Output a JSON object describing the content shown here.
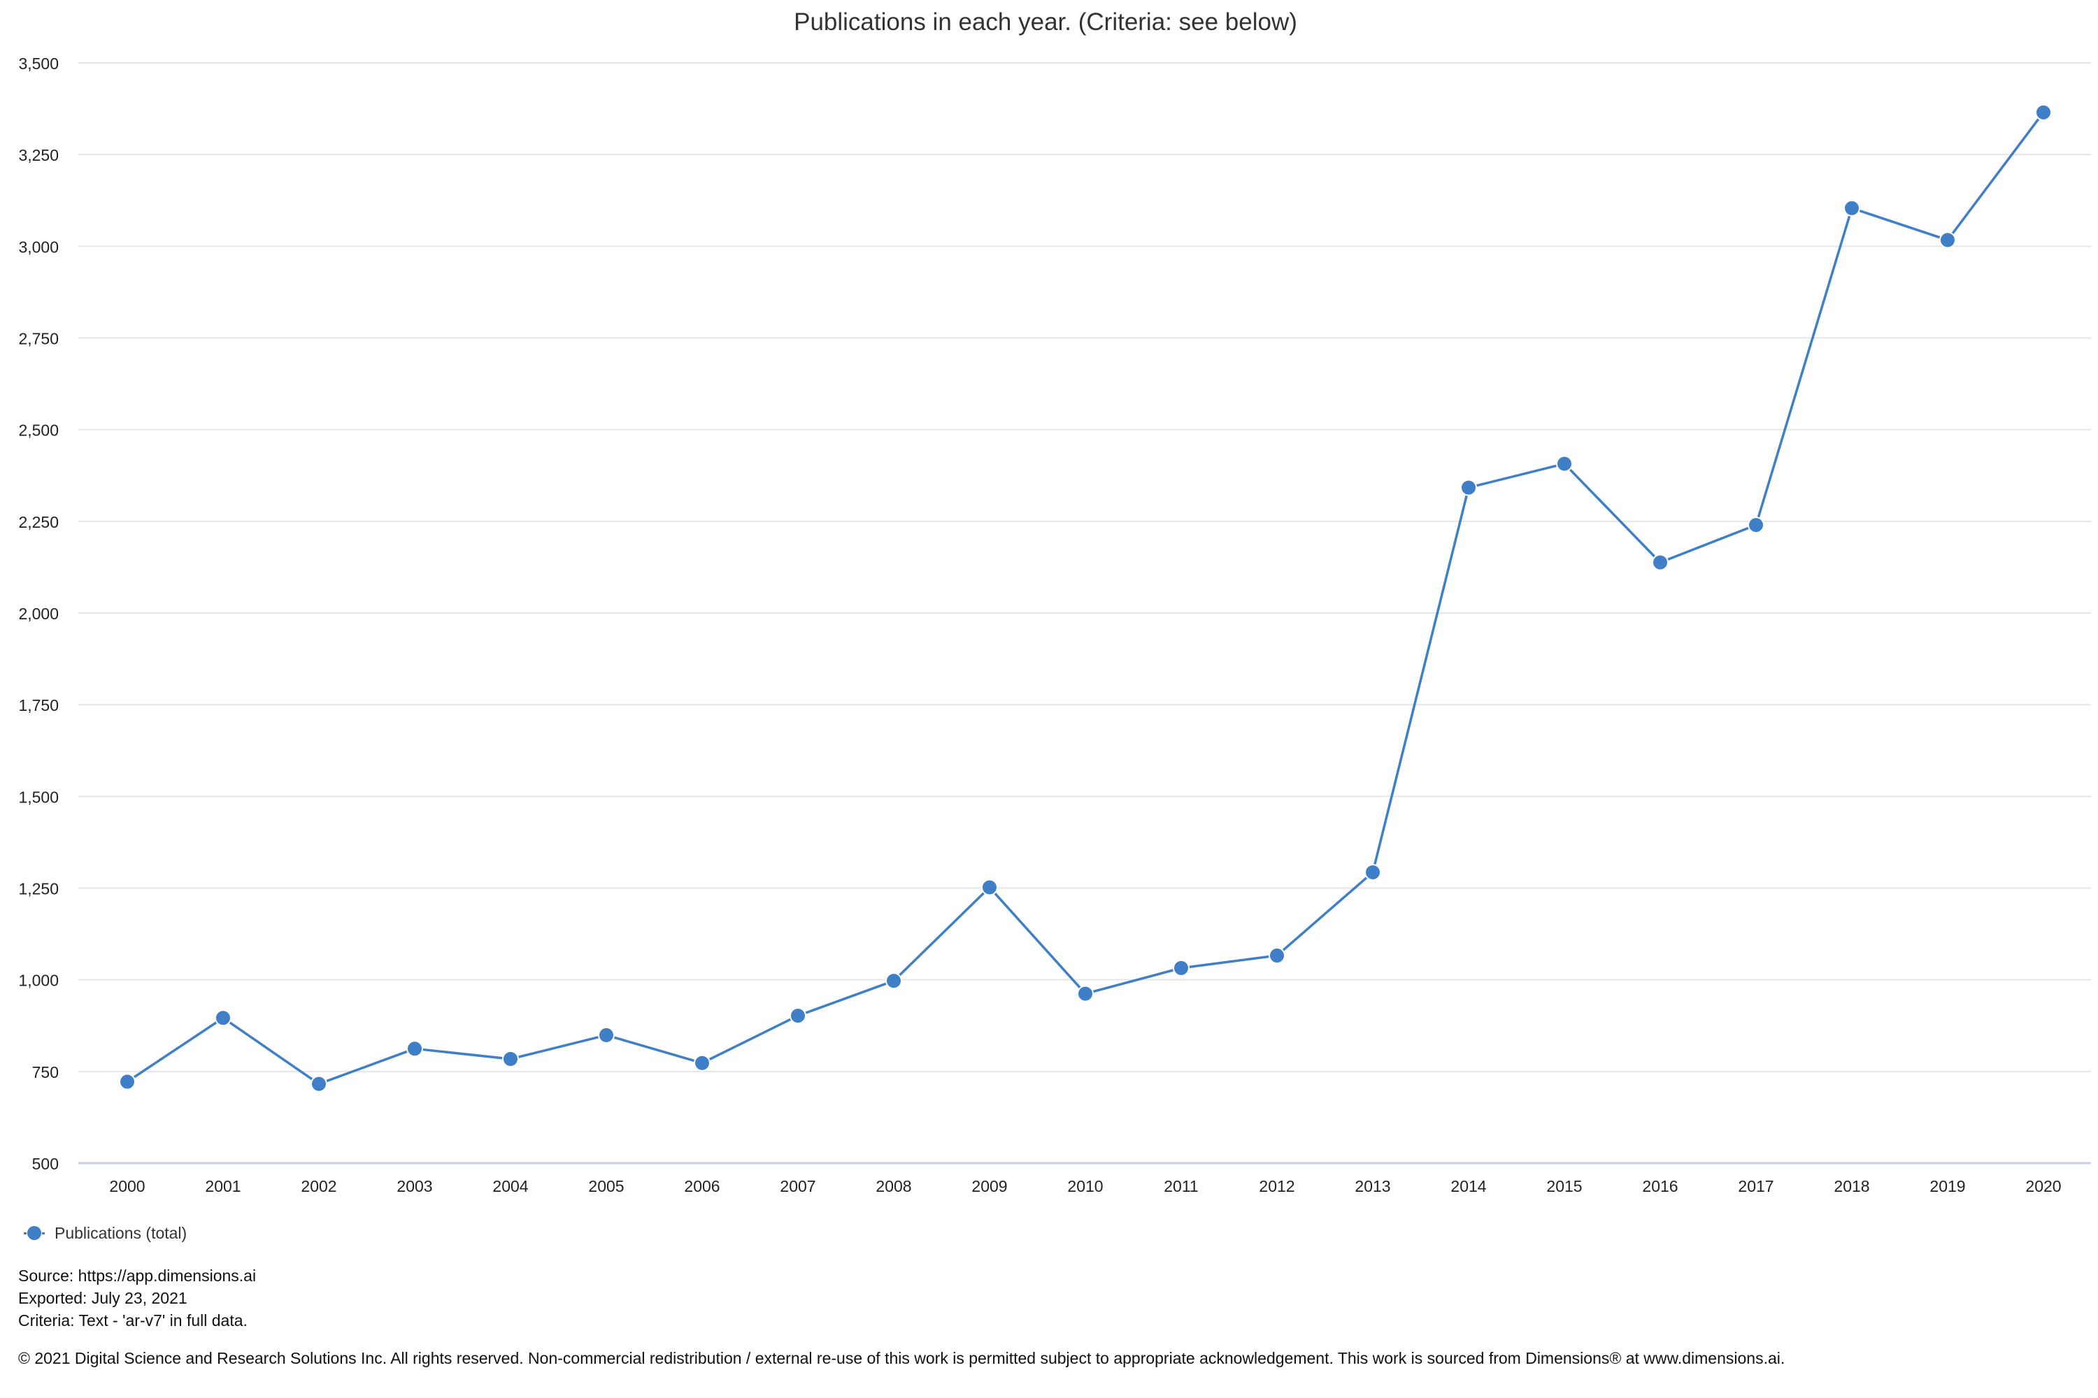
{
  "chart_data": {
    "type": "line",
    "title": "Publications in each year. (Criteria: see below)",
    "categories": [
      "2000",
      "2001",
      "2002",
      "2003",
      "2004",
      "2005",
      "2006",
      "2007",
      "2008",
      "2009",
      "2010",
      "2011",
      "2012",
      "2013",
      "2014",
      "2015",
      "2016",
      "2017",
      "2018",
      "2019",
      "2020"
    ],
    "series": [
      {
        "name": "Publications (total)",
        "values": [
          722,
          896,
          716,
          812,
          784,
          849,
          773,
          902,
          997,
          1252,
          962,
          1032,
          1066,
          1293,
          2342,
          2407,
          2138,
          2240,
          3104,
          3017,
          3365
        ]
      }
    ],
    "ylim": [
      500,
      3500
    ],
    "yticks": [
      "500",
      "750",
      "1,000",
      "1,250",
      "1,500",
      "1,750",
      "2,000",
      "2,250",
      "2,500",
      "2,750",
      "3,000",
      "3,250",
      "3,500"
    ],
    "ytick_values": [
      500,
      750,
      1000,
      1250,
      1500,
      1750,
      2000,
      2250,
      2500,
      2750,
      3000,
      3250,
      3500
    ],
    "grid": true,
    "legend_position": "bottom-left",
    "color": "#3f7fc7"
  },
  "footer": {
    "source": "Source: https://app.dimensions.ai",
    "exported": "Exported: July 23, 2021",
    "criteria": "Criteria: Text - 'ar-v7' in full data.",
    "copyright": "© 2021 Digital Science and Research Solutions Inc. All rights reserved. Non-commercial redistribution / external re-use of this work is permitted subject to appropriate acknowledgement. This work is sourced from Dimensions® at www.dimensions.ai."
  }
}
